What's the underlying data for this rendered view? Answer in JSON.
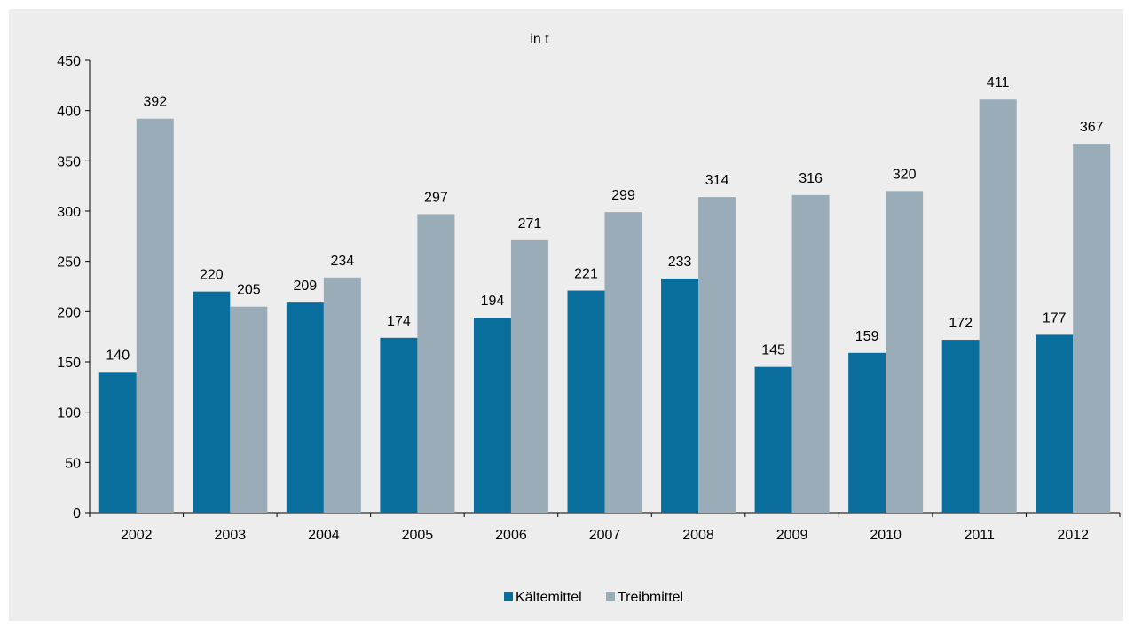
{
  "chart_data": {
    "type": "bar",
    "title": "in t",
    "categories": [
      "2002",
      "2003",
      "2004",
      "2005",
      "2006",
      "2007",
      "2008",
      "2009",
      "2010",
      "2011",
      "2012"
    ],
    "series": [
      {
        "name": "Kältemittel",
        "color": "#0a6e9c",
        "values": [
          140,
          220,
          209,
          174,
          194,
          221,
          233,
          145,
          159,
          172,
          177
        ]
      },
      {
        "name": "Treibmittel",
        "color": "#9aacb8",
        "values": [
          392,
          205,
          234,
          297,
          271,
          299,
          314,
          316,
          320,
          411,
          367
        ]
      }
    ],
    "ylim": [
      0,
      450
    ],
    "yticks": [
      0,
      50,
      100,
      150,
      200,
      250,
      300,
      350,
      400,
      450
    ],
    "grid": false,
    "legend": "bottom"
  }
}
